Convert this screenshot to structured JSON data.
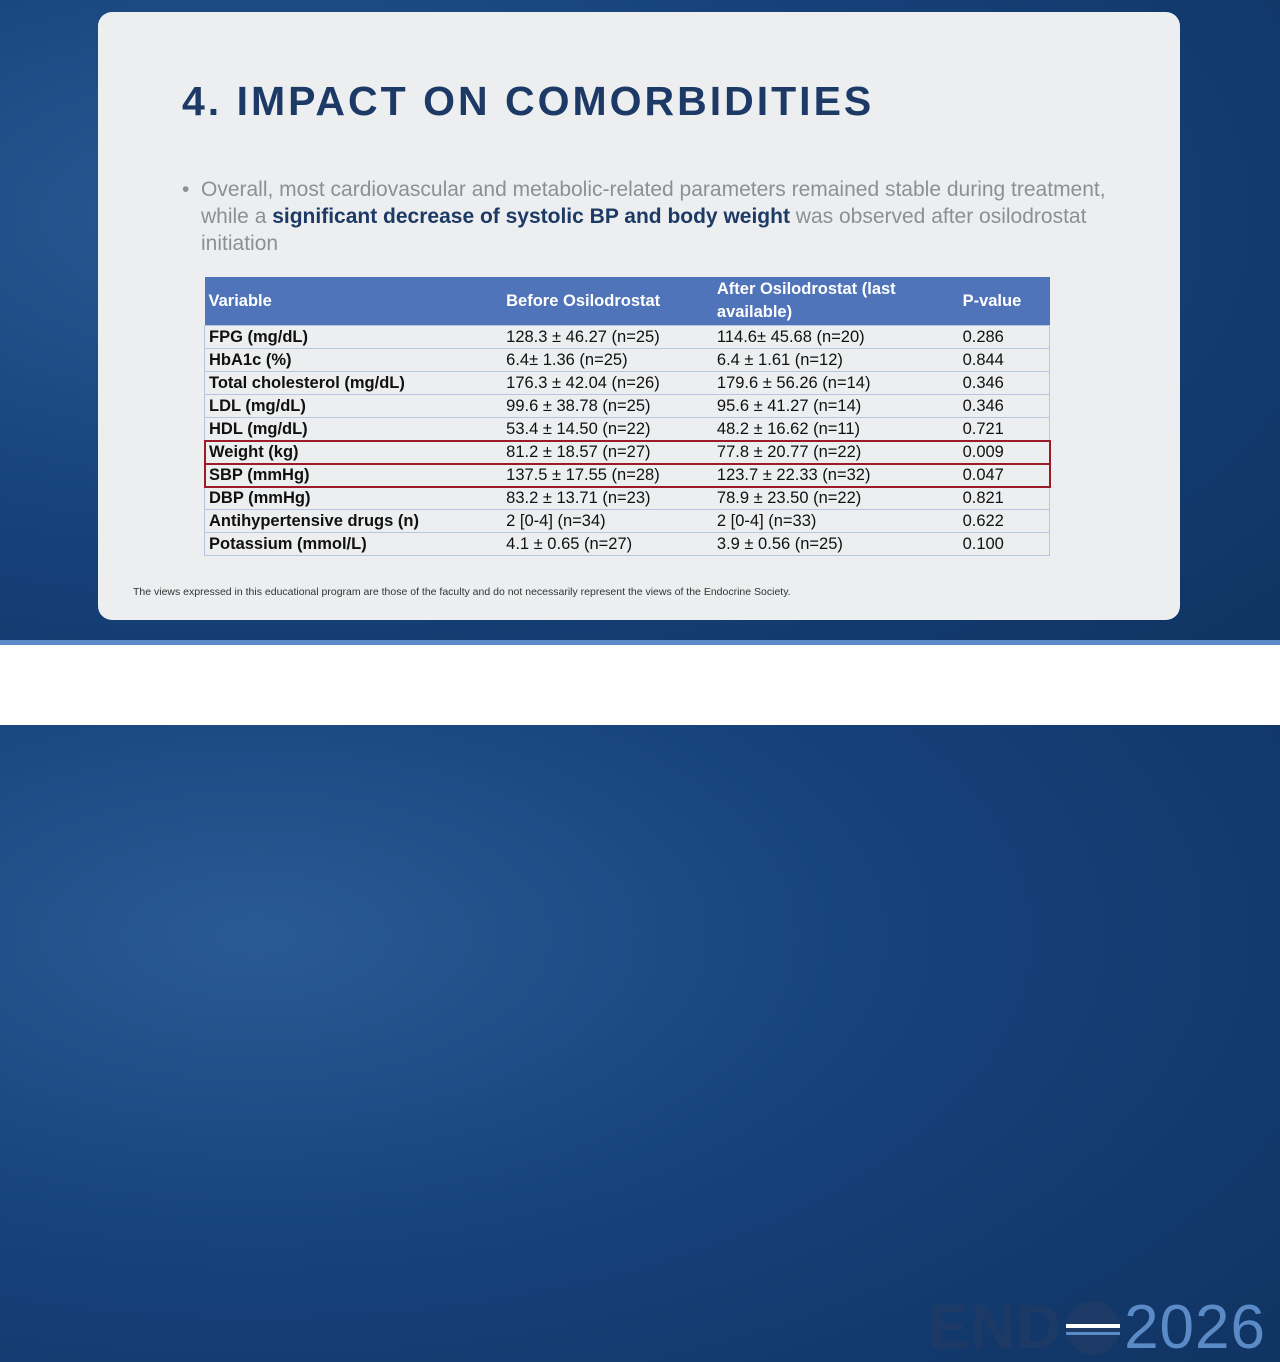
{
  "slide": {
    "title": "4. IMPACT ON COMORBIDITIES",
    "bullet": {
      "before": "Overall, most cardiovascular and metabolic-related parameters remained stable during treatment, while a ",
      "emphasis": "significant decrease of systolic BP and body weight",
      "after": " was observed after osilodrostat initiation"
    },
    "table": {
      "header": [
        "Variable",
        "Before Osilodrostat",
        "After Osilodrostat (last available)",
        "P-value"
      ],
      "rows": [
        [
          "FPG (mg/dL)",
          "128.3 ± 46.27 (n=25)",
          "114.6± 45.68 (n=20)",
          "0.286"
        ],
        [
          "HbA1c (%)",
          "6.4± 1.36 (n=25)",
          "6.4 ± 1.61 (n=12)",
          "0.844"
        ],
        [
          "Total cholesterol (mg/dL)",
          "176.3 ± 42.04 (n=26)",
          "179.6 ± 56.26 (n=14)",
          "0.346"
        ],
        [
          "LDL (mg/dL)",
          "99.6 ± 38.78 (n=25)",
          "95.6 ± 41.27 (n=14)",
          "0.346"
        ],
        [
          "HDL (mg/dL)",
          "53.4 ± 14.50 (n=22)",
          "48.2 ± 16.62 (n=11)",
          "0.721"
        ],
        [
          "Weight (kg)",
          "81.2 ± 18.57 (n=27)",
          "77.8 ± 20.77 (n=22)",
          "0.009"
        ],
        [
          "SBP (mmHg)",
          "137.5 ± 17.55 (n=28)",
          "123.7 ± 22.33 (n=32)",
          "0.047"
        ],
        [
          "DBP (mmHg)",
          "83.2 ± 13.71 (n=23)",
          "78.9 ± 23.50 (n=22)",
          "0.821"
        ],
        [
          "Antihypertensive drugs (n)",
          "2 [0-4] (n=34)",
          "2 [0-4] (n=33)",
          "0.622"
        ],
        [
          "Potassium (mmol/L)",
          "4.1 ± 0.65 (n=27)",
          "3.9 ± 0.56 (n=25)",
          "0.100"
        ]
      ]
    },
    "disclaimer": "The views expressed in this educational program are those of the faculty and do not necessarily represent the views of the Endocrine Society."
  },
  "logo": {
    "left": "END",
    "right": "2026"
  }
}
